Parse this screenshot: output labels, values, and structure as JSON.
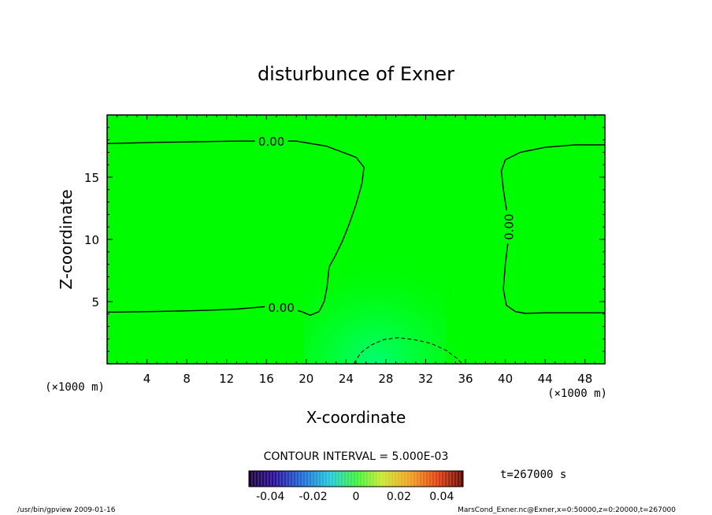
{
  "chart_data": {
    "type": "heatmap",
    "title": "disturbunce of Exner",
    "xlabel": "X-coordinate",
    "ylabel": "Z-coordinate",
    "x_unit_left": "(×1000 m)",
    "x_unit_right": "(×1000 m)",
    "xlim": [
      0,
      50
    ],
    "ylim": [
      0,
      20
    ],
    "x_ticks": [
      4,
      8,
      12,
      16,
      20,
      24,
      28,
      32,
      36,
      40,
      44,
      48
    ],
    "y_ticks": [
      5,
      10,
      15
    ],
    "contour_interval_text": "CONTOUR INTERVAL = 5.000E-03",
    "time_text": "t=267000 s",
    "colorbar": {
      "min": -0.05,
      "max": 0.05,
      "ticks": [
        "-0.04",
        "-0.02",
        "0",
        "0.02",
        "0.04"
      ],
      "tick_values": [
        -0.04,
        -0.02,
        0,
        0.02,
        0.04
      ]
    },
    "contours": [
      {
        "level": 0.0,
        "label": "0.00",
        "style": "solid",
        "points": [
          [
            0,
            17.7
          ],
          [
            5,
            17.8
          ],
          [
            9,
            17.85
          ],
          [
            13,
            17.9
          ],
          [
            16,
            17.9
          ],
          [
            19,
            17.9
          ],
          [
            22,
            17.5
          ],
          [
            25,
            16.6
          ],
          [
            25.8,
            15.8
          ],
          [
            25.6,
            14.5
          ],
          [
            25,
            12.8
          ],
          [
            24.3,
            11.2
          ],
          [
            23.6,
            9.8
          ],
          [
            22.8,
            8.5
          ],
          [
            22.3,
            7.8
          ],
          [
            22.1,
            6.2
          ],
          [
            21.8,
            5.0
          ],
          [
            21.3,
            4.2
          ],
          [
            20.4,
            3.9
          ],
          [
            19.5,
            4.2
          ],
          [
            18,
            4.5
          ],
          [
            16,
            4.6
          ],
          [
            13,
            4.4
          ],
          [
            10,
            4.3
          ],
          [
            5,
            4.2
          ],
          [
            0,
            4.15
          ]
        ]
      },
      {
        "level": 0.0,
        "label": "0.00",
        "style": "solid",
        "points": [
          [
            50,
            17.6
          ],
          [
            47,
            17.6
          ],
          [
            44,
            17.4
          ],
          [
            41.5,
            17.0
          ],
          [
            40,
            16.4
          ],
          [
            39.6,
            15.5
          ],
          [
            39.8,
            14.0
          ],
          [
            40.2,
            12.0
          ],
          [
            40.3,
            10.0
          ],
          [
            40.0,
            8.0
          ],
          [
            39.8,
            6.0
          ],
          [
            40.1,
            4.7
          ],
          [
            41,
            4.2
          ],
          [
            42,
            4.05
          ],
          [
            44,
            4.1
          ],
          [
            46,
            4.1
          ],
          [
            48,
            4.1
          ],
          [
            50,
            4.1
          ]
        ]
      },
      {
        "level": -0.005,
        "label": "",
        "style": "dashed",
        "points": [
          [
            24.8,
            0.05
          ],
          [
            25.5,
            0.9
          ],
          [
            26.5,
            1.5
          ],
          [
            27.8,
            1.95
          ],
          [
            29.2,
            2.1
          ],
          [
            30.8,
            1.95
          ],
          [
            32.5,
            1.65
          ],
          [
            34,
            1.1
          ],
          [
            35.2,
            0.4
          ],
          [
            35.6,
            0.05
          ]
        ]
      }
    ],
    "field_description_colors": {
      "background": "#00fc00",
      "center_highlight": "#00ff66"
    }
  },
  "footer": {
    "left": "/usr/bin/gpview   2009-01-16",
    "right": "MarsCond_Exner.nc@Exner,x=0:50000,z=0:20000,t=267000"
  }
}
